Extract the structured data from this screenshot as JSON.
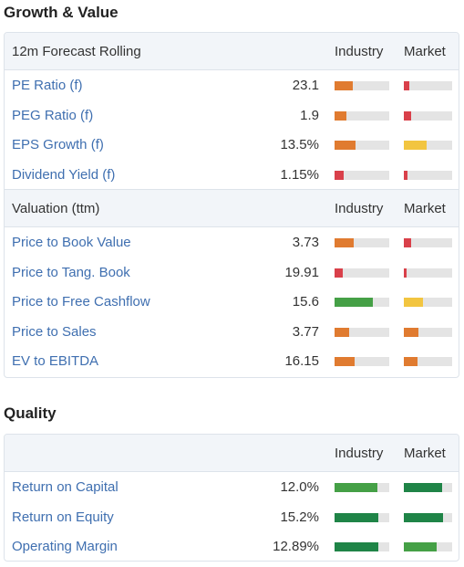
{
  "growth_value": {
    "title": "Growth & Value",
    "forecast": {
      "header": "12m Forecast Rolling",
      "col_industry": "Industry",
      "col_market": "Market",
      "rows": [
        {
          "label": "PE Ratio (f)",
          "value": "23.1",
          "industry": 0.33,
          "industry_color": "#e07b30",
          "market": 0.12,
          "market_color": "#d9404a"
        },
        {
          "label": "PEG Ratio (f)",
          "value": "1.9",
          "industry": 0.22,
          "industry_color": "#e07b30",
          "market": 0.16,
          "market_color": "#d9404a"
        },
        {
          "label": "EPS Growth (f)",
          "value": "13.5%",
          "industry": 0.38,
          "industry_color": "#e07b30",
          "market": 0.48,
          "market_color": "#f2c540"
        },
        {
          "label": "Dividend Yield (f)",
          "value": "1.15%",
          "industry": 0.17,
          "industry_color": "#d9404a",
          "market": 0.07,
          "market_color": "#d9404a"
        }
      ]
    },
    "valuation": {
      "header": "Valuation (ttm)",
      "col_industry": "Industry",
      "col_market": "Market",
      "rows": [
        {
          "label": "Price to Book Value",
          "value": "3.73",
          "industry": 0.35,
          "industry_color": "#e07b30",
          "market": 0.15,
          "market_color": "#d9404a"
        },
        {
          "label": "Price to Tang. Book",
          "value": "19.91",
          "industry": 0.15,
          "industry_color": "#d9404a",
          "market": 0.05,
          "market_color": "#d9404a"
        },
        {
          "label": "Price to Free Cashflow",
          "value": "15.6",
          "industry": 0.7,
          "industry_color": "#45a046",
          "market": 0.4,
          "market_color": "#f2c540"
        },
        {
          "label": "Price to Sales",
          "value": "3.77",
          "industry": 0.27,
          "industry_color": "#e07b30",
          "market": 0.3,
          "market_color": "#e07b30"
        },
        {
          "label": "EV to EBITDA",
          "value": "16.15",
          "industry": 0.37,
          "industry_color": "#e07b30",
          "market": 0.28,
          "market_color": "#e07b30"
        }
      ]
    }
  },
  "quality": {
    "title": "Quality",
    "col_industry": "Industry",
    "col_market": "Market",
    "rows": [
      {
        "label": "Return on Capital",
        "value": "12.0%",
        "industry": 0.78,
        "industry_color": "#45a046",
        "market": 0.8,
        "market_color": "#1f8447"
      },
      {
        "label": "Return on Equity",
        "value": "15.2%",
        "industry": 0.8,
        "industry_color": "#1f8447",
        "market": 0.82,
        "market_color": "#1f8447"
      },
      {
        "label": "Operating Margin",
        "value": "12.89%",
        "industry": 0.8,
        "industry_color": "#1f8447",
        "market": 0.68,
        "market_color": "#45a046"
      }
    ]
  }
}
